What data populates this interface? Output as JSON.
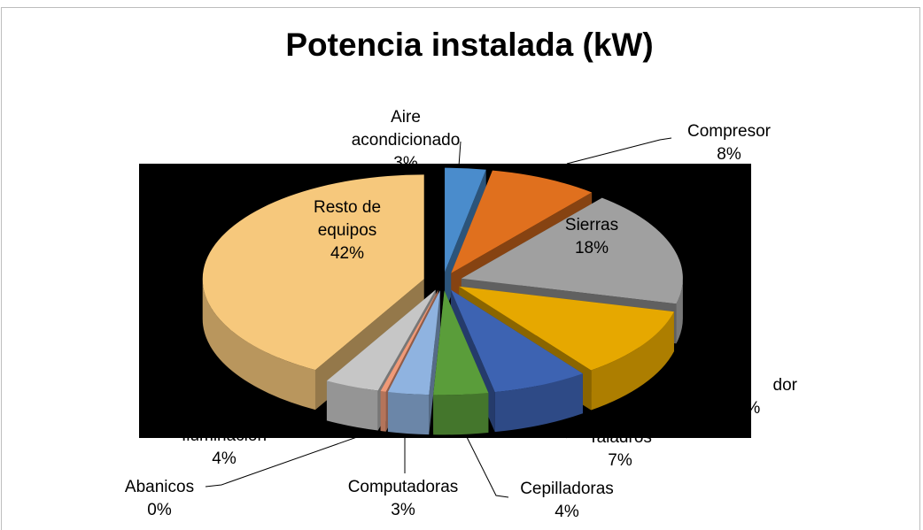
{
  "chart_data": {
    "type": "pie",
    "title": "Potencia instalada (kW)",
    "categories": [
      "Aire acondicionado",
      "Compresor",
      "Sierras",
      "dor",
      "Taladros",
      "Cepilladoras",
      "Computadoras",
      "Abanicos",
      "Iluminación",
      "Resto de equipos"
    ],
    "values": [
      3,
      8,
      18,
      11,
      7,
      4,
      3,
      0.4,
      4,
      42
    ],
    "value_labels": [
      "3%",
      "8%",
      "18%",
      "11%",
      "7%",
      "4%",
      "3%",
      "0%",
      "4%",
      "42%"
    ],
    "colors": [
      "#4a8ccc",
      "#e0701e",
      "#a0a0a0",
      "#e6a800",
      "#3d63b2",
      "#5a9d3a",
      "#8fb3e0",
      "#f09a78",
      "#c6c6c6",
      "#f6c87c"
    ]
  }
}
